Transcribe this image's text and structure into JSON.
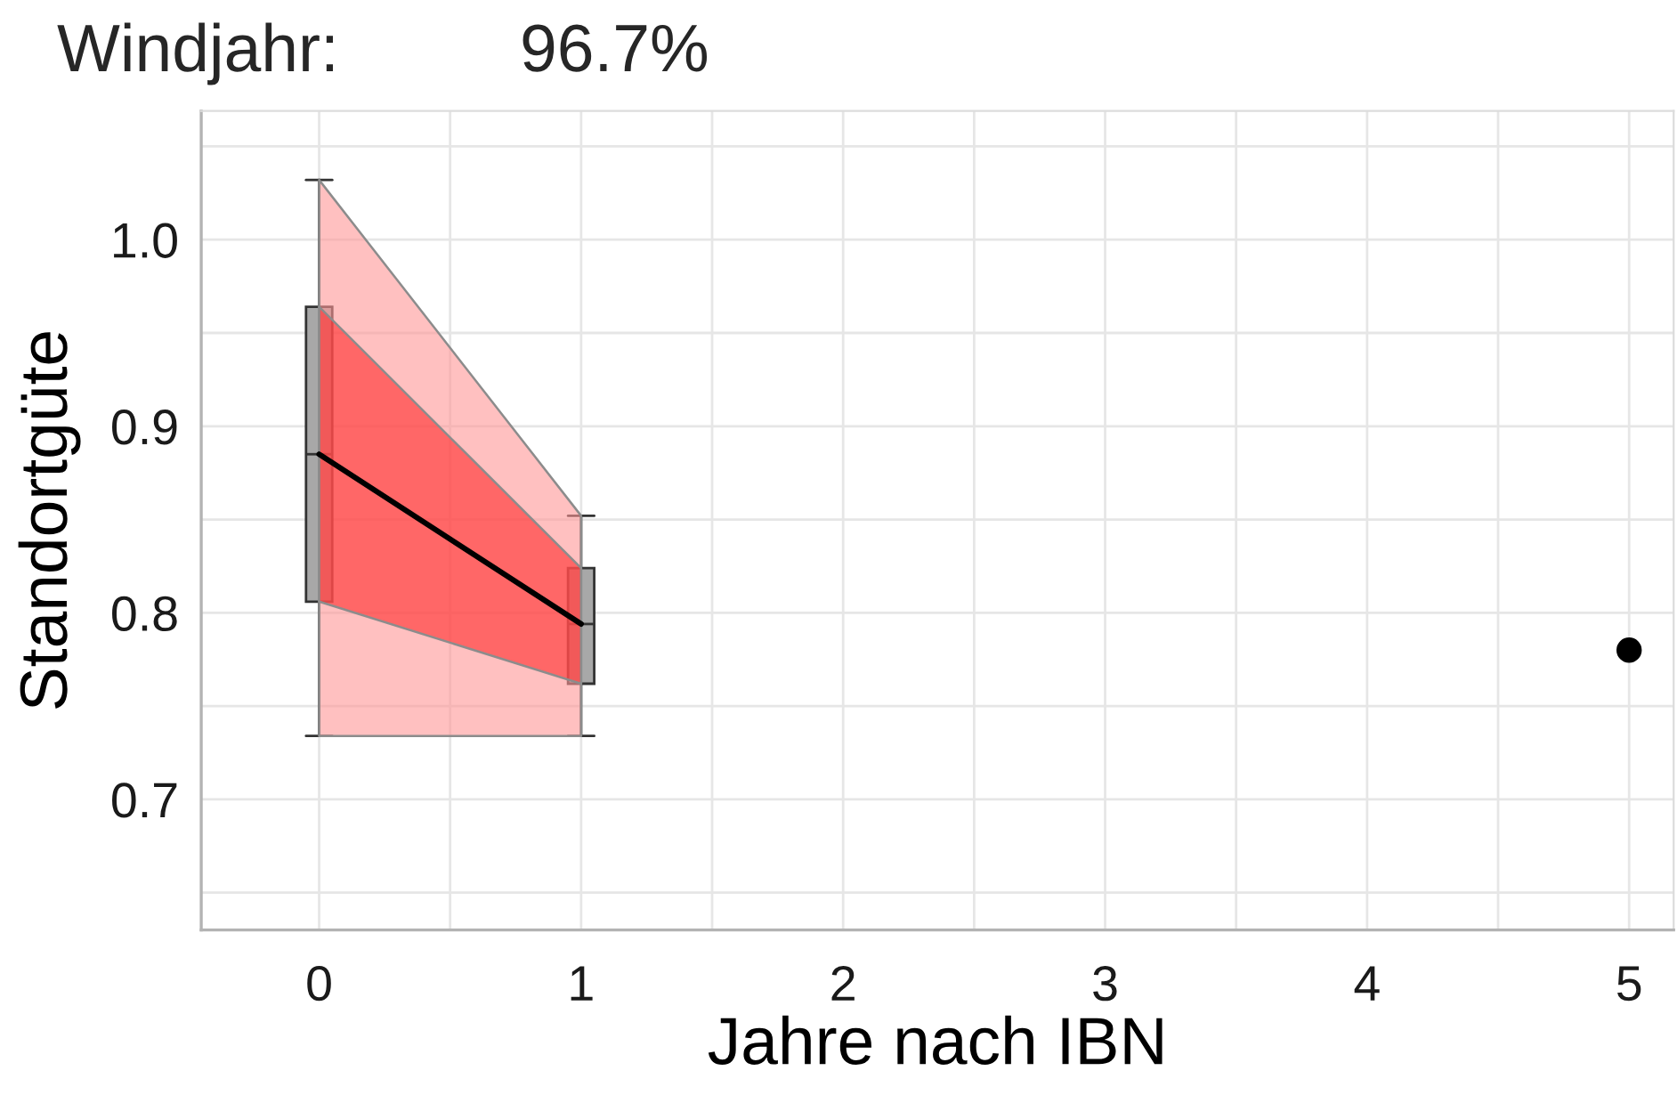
{
  "chart_data": {
    "type": "box",
    "title": "Windjahr:",
    "annotations": [
      "96.7%"
    ],
    "xlabel": "Jahre nach IBN",
    "ylabel": "Standortgüte",
    "xlim": [
      -0.45,
      5.17
    ],
    "ylim": [
      0.63,
      1.069
    ],
    "xticks": [
      0,
      {
        "value": 0.5,
        "label": null
      },
      1,
      {
        "value": 1.5,
        "label": null
      },
      2,
      {
        "value": 2.5,
        "label": null
      },
      3,
      {
        "value": 3.5,
        "label": null
      },
      4,
      {
        "value": 4.5,
        "label": null
      },
      5
    ],
    "yticks": [
      {
        "value": 0.65,
        "label": null
      },
      0.7,
      {
        "value": 0.75,
        "label": null
      },
      0.8,
      {
        "value": 0.85,
        "label": null
      },
      0.9,
      {
        "value": 0.95,
        "label": null
      },
      {
        "value": 1.0,
        "label": "1.0"
      },
      {
        "value": 1.05,
        "label": null
      }
    ],
    "grid": true,
    "series": [
      {
        "color": "#a8a8a8",
        "x": [
          0,
          1
        ],
        "boxes": [
          {
            "low": 0.734,
            "q1": 0.806,
            "median": 0.885,
            "q3": 0.964,
            "high": 1.032
          },
          {
            "low": 0.734,
            "q1": 0.762,
            "median": 0.794,
            "q3": 0.824,
            "high": 0.852
          }
        ]
      },
      {
        "type": "line",
        "color": "#ffc0c0",
        "x": [
          0,
          1
        ],
        "values": [
          null,
          null
        ],
        "lower": [
          0.734,
          0.734
        ],
        "upper": [
          1.032,
          0.852
        ]
      },
      {
        "type": "line",
        "color": "#ff8080",
        "x": [
          0,
          1
        ],
        "values": [
          null,
          null
        ],
        "lower": [
          0.806,
          0.762
        ],
        "upper": [
          0.964,
          0.824
        ]
      },
      {
        "type": "line",
        "color": "#000000",
        "x": [
          0,
          1
        ],
        "values": [
          0.885,
          0.794
        ]
      },
      {
        "type": "scatter",
        "color": "#000000",
        "x": [
          5
        ],
        "values": [
          0.78
        ],
        "marker": "circle"
      }
    ]
  }
}
